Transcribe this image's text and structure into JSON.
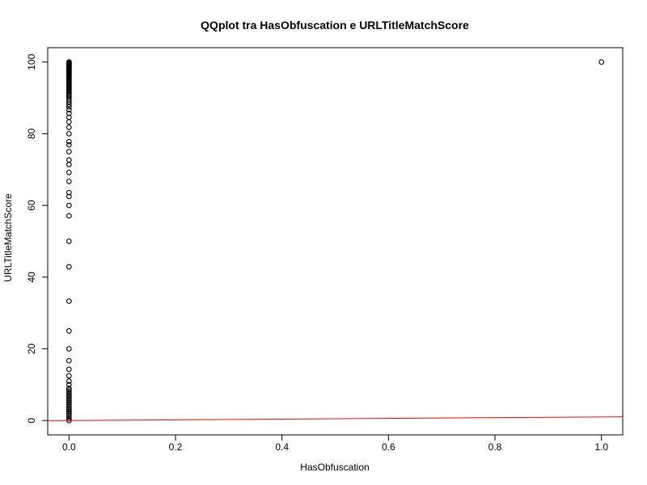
{
  "chart_data": {
    "type": "scatter",
    "title": "QQplot tra HasObfuscation e URLTitleMatchScore",
    "xlabel": "HasObfuscation",
    "ylabel": "URLTitleMatchScore",
    "xlim": [
      -0.04,
      1.04
    ],
    "ylim": [
      -4,
      104
    ],
    "xticks": [
      0.0,
      0.2,
      0.4,
      0.6,
      0.8,
      1.0
    ],
    "xtick_labels": [
      "0.0",
      "0.2",
      "0.4",
      "0.6",
      "0.8",
      "1.0"
    ],
    "yticks": [
      0,
      20,
      40,
      60,
      80,
      100
    ],
    "ytick_labels": [
      "0",
      "20",
      "40",
      "60",
      "80",
      "100"
    ],
    "grid": false,
    "legend": "none",
    "points": {
      "x": [
        0,
        0,
        0,
        0,
        0,
        0,
        0,
        0,
        0,
        0,
        0,
        0,
        0,
        0,
        0,
        0,
        0,
        0,
        0,
        0,
        0,
        0,
        0,
        0,
        0,
        0,
        0,
        0,
        0,
        0,
        0,
        0,
        0,
        0,
        0,
        0,
        0,
        0,
        0,
        0,
        0,
        0,
        0,
        0,
        0,
        0,
        0,
        0,
        0,
        0,
        0,
        0,
        0,
        0,
        0,
        0,
        0,
        0,
        0,
        0,
        0,
        0,
        0,
        0,
        0,
        0,
        0,
        0,
        0,
        0,
        0,
        0,
        0,
        0,
        0,
        0,
        0,
        0,
        0,
        0,
        0,
        0,
        0,
        0,
        0,
        0,
        0,
        0,
        0,
        0,
        0,
        0,
        0,
        0,
        0,
        0,
        0,
        0,
        0,
        1
      ],
      "y": [
        0,
        0.5,
        1,
        1.5,
        2,
        2.5,
        3,
        3.5,
        4,
        4.5,
        5,
        5.5,
        6,
        6.5,
        7,
        7.5,
        8,
        8.5,
        9,
        10,
        11,
        12.5,
        14.3,
        16.7,
        20,
        25,
        33.3,
        42.9,
        50,
        57.1,
        60,
        62.5,
        63.6,
        66.7,
        69.2,
        71.4,
        72.7,
        75,
        76.9,
        77.8,
        80,
        81.8,
        83.3,
        84.6,
        85.7,
        86.7,
        87.5,
        88.2,
        88.9,
        89.5,
        90,
        90.5,
        90.9,
        91.3,
        91.7,
        92,
        92.3,
        92.6,
        92.9,
        93.1,
        93.3,
        93.5,
        93.8,
        94.1,
        94.4,
        94.7,
        95,
        95.2,
        95.5,
        95.7,
        96,
        96.2,
        96.4,
        96.6,
        96.8,
        97,
        97.1,
        97.3,
        97.5,
        97.7,
        97.8,
        98,
        98.1,
        98.3,
        98.5,
        98.6,
        98.8,
        99,
        99.1,
        99.2,
        99.3,
        99.4,
        99.5,
        99.6,
        99.7,
        99.8,
        99.9,
        100,
        100,
        100
      ]
    },
    "reference_line": {
      "x": [
        -0.04,
        1.04
      ],
      "y": [
        -0.04,
        1.04
      ],
      "color": "#ff0000"
    },
    "point_color": "#000000"
  }
}
